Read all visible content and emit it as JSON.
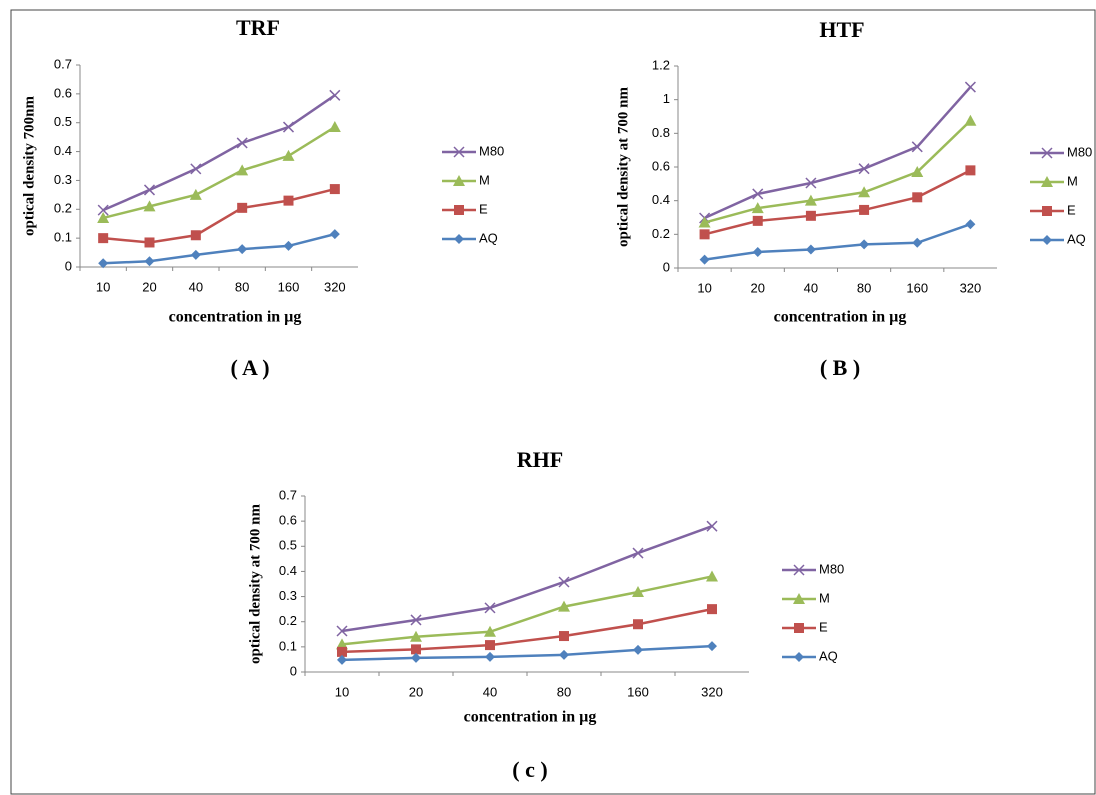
{
  "chart_data": [
    {
      "type": "line",
      "title": "TRF",
      "panel_label": "( A )",
      "xlabel": "concentration in µg",
      "ylabel": "optical density 700nm",
      "categories": [
        "10",
        "20",
        "40",
        "80",
        "160",
        "320"
      ],
      "ylim": [
        0,
        0.7
      ],
      "yticks": [
        0,
        0.1,
        0.2,
        0.3,
        0.4,
        0.5,
        0.6,
        0.7
      ],
      "grid": false,
      "legend": "right",
      "series": [
        {
          "name": "M80",
          "color": "#8064a2",
          "marker": "x",
          "values": [
            0.197,
            0.267,
            0.34,
            0.43,
            0.485,
            0.595
          ]
        },
        {
          "name": "M",
          "color": "#9bbb59",
          "marker": "triangle",
          "values": [
            0.17,
            0.21,
            0.25,
            0.335,
            0.385,
            0.485
          ]
        },
        {
          "name": "E",
          "color": "#c0504d",
          "marker": "square",
          "values": [
            0.1,
            0.085,
            0.11,
            0.205,
            0.23,
            0.27
          ]
        },
        {
          "name": "AQ",
          "color": "#4f81bd",
          "marker": "diamond",
          "values": [
            0.013,
            0.02,
            0.042,
            0.062,
            0.073,
            0.114
          ]
        }
      ]
    },
    {
      "type": "line",
      "title": "HTF",
      "panel_label": "( B )",
      "xlabel": "concentration in µg",
      "ylabel": "optical density at 700 nm",
      "categories": [
        "10",
        "20",
        "40",
        "80",
        "160",
        "320"
      ],
      "ylim": [
        0,
        1.2
      ],
      "yticks": [
        0,
        0.2,
        0.4,
        0.6,
        0.8,
        1,
        1.2
      ],
      "grid": false,
      "legend": "right",
      "series": [
        {
          "name": "M80",
          "color": "#8064a2",
          "marker": "x",
          "values": [
            0.297,
            0.44,
            0.505,
            0.59,
            0.72,
            1.075
          ]
        },
        {
          "name": "M",
          "color": "#9bbb59",
          "marker": "triangle",
          "values": [
            0.27,
            0.356,
            0.4,
            0.45,
            0.57,
            0.875
          ]
        },
        {
          "name": "E",
          "color": "#c0504d",
          "marker": "square",
          "values": [
            0.2,
            0.28,
            0.31,
            0.345,
            0.42,
            0.58
          ]
        },
        {
          "name": "AQ",
          "color": "#4f81bd",
          "marker": "diamond",
          "values": [
            0.05,
            0.095,
            0.11,
            0.14,
            0.15,
            0.26
          ]
        }
      ]
    },
    {
      "type": "line",
      "title": "RHF",
      "panel_label": "( c )",
      "xlabel": "concentration in µg",
      "ylabel": "optical density at 700 nm",
      "categories": [
        "10",
        "20",
        "40",
        "80",
        "160",
        "320"
      ],
      "ylim": [
        0,
        0.7
      ],
      "yticks": [
        0,
        0.1,
        0.2,
        0.3,
        0.4,
        0.5,
        0.6,
        0.7
      ],
      "grid": false,
      "legend": "right",
      "series": [
        {
          "name": "M80",
          "color": "#8064a2",
          "marker": "x",
          "values": [
            0.163,
            0.207,
            0.255,
            0.358,
            0.473,
            0.58
          ]
        },
        {
          "name": "M",
          "color": "#9bbb59",
          "marker": "triangle",
          "values": [
            0.11,
            0.14,
            0.16,
            0.26,
            0.318,
            0.38
          ]
        },
        {
          "name": "E",
          "color": "#c0504d",
          "marker": "square",
          "values": [
            0.08,
            0.09,
            0.107,
            0.143,
            0.19,
            0.25
          ]
        },
        {
          "name": "AQ",
          "color": "#4f81bd",
          "marker": "diamond",
          "values": [
            0.048,
            0.056,
            0.06,
            0.068,
            0.088,
            0.103
          ]
        }
      ]
    }
  ]
}
